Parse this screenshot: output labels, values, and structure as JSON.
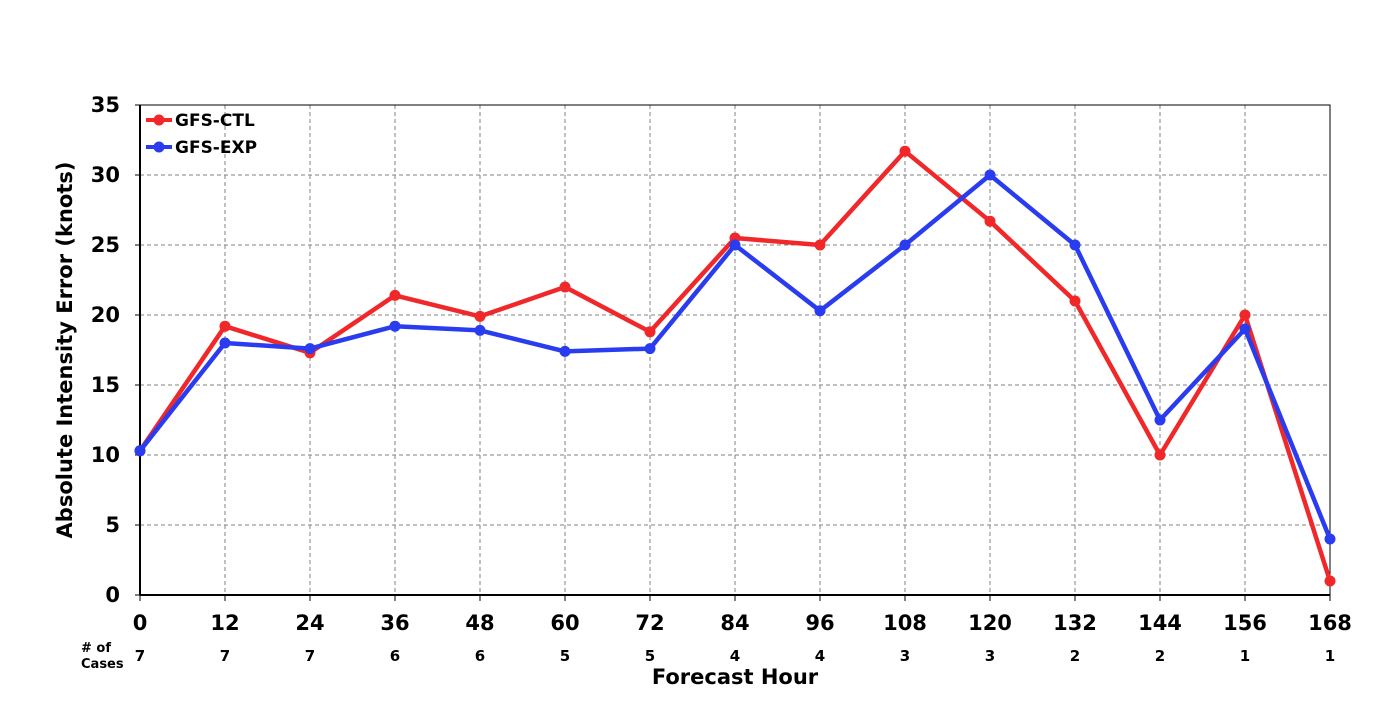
{
  "chart_data": {
    "type": "line",
    "title": "",
    "xlabel": "Forecast Hour",
    "ylabel": "Absolute Intensity Error (knots)",
    "x": [
      0,
      12,
      24,
      36,
      48,
      60,
      72,
      84,
      96,
      108,
      120,
      132,
      144,
      156,
      168
    ],
    "xlim": [
      0,
      168
    ],
    "ylim": [
      0,
      35
    ],
    "yticks": [
      0,
      5,
      10,
      15,
      20,
      25,
      30,
      35
    ],
    "grid": true,
    "legend_position": "top-left",
    "cases_header": [
      "# of",
      "Cases"
    ],
    "cases": [
      7,
      7,
      7,
      6,
      6,
      5,
      5,
      4,
      4,
      3,
      3,
      2,
      2,
      1,
      1
    ],
    "series": [
      {
        "name": "GFS-CTL",
        "color": "#f0282a",
        "values": [
          10.3,
          19.2,
          17.3,
          21.4,
          19.9,
          22.0,
          18.8,
          25.5,
          25.0,
          31.7,
          26.7,
          21.0,
          10.0,
          20.0,
          1.0
        ]
      },
      {
        "name": "GFS-EXP",
        "color": "#2a3cf0",
        "values": [
          10.3,
          18.0,
          17.6,
          19.2,
          18.9,
          17.4,
          17.6,
          25.0,
          20.3,
          25.0,
          30.0,
          25.0,
          12.5,
          19.0,
          4.0
        ]
      }
    ]
  }
}
